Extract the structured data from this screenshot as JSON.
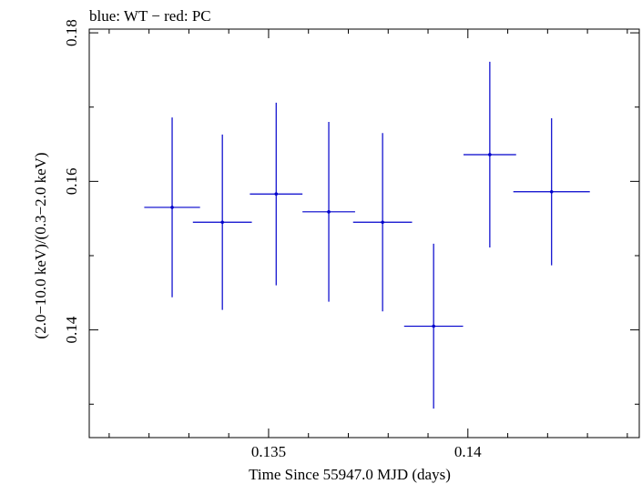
{
  "chart_data": {
    "type": "scatter",
    "title": "blue: WT − red: PC",
    "xlabel": "Time Since 55947.0 MJD (days)",
    "ylabel": "(2.0−10.0 keV)/(0.3−2.0 keV)",
    "xlim": [
      0.1305,
      0.1443
    ],
    "ylim": [
      0.1255,
      0.1805
    ],
    "x_ticks": [
      {
        "value": 0.135,
        "label": "0.135"
      },
      {
        "value": 0.14,
        "label": "0.14"
      }
    ],
    "y_ticks": [
      {
        "value": 0.14,
        "label": "0.14"
      },
      {
        "value": 0.16,
        "label": "0.16"
      },
      {
        "value": 0.18,
        "label": "0.18"
      }
    ],
    "grid": false,
    "series": [
      {
        "color": "#0000cc",
        "points": [
          {
            "x": 0.13258,
            "xerr": 0.0007,
            "y": 0.1565,
            "yerr": 0.0121
          },
          {
            "x": 0.13384,
            "xerr": 0.00074,
            "y": 0.1545,
            "yerr": 0.0118
          },
          {
            "x": 0.13519,
            "xerr": 0.00066,
            "y": 0.1583,
            "yerr": 0.0123
          },
          {
            "x": 0.13651,
            "xerr": 0.00066,
            "y": 0.1559,
            "yerr": 0.0121
          },
          {
            "x": 0.13786,
            "xerr": 0.00074,
            "y": 0.1545,
            "yerr": 0.012
          },
          {
            "x": 0.13914,
            "xerr": 0.00074,
            "y": 0.1405,
            "yerr": 0.0111
          },
          {
            "x": 0.14055,
            "xerr": 0.00066,
            "y": 0.1636,
            "yerr": 0.0125
          },
          {
            "x": 0.1421,
            "xerr": 0.00096,
            "y": 0.1586,
            "yerr": 0.0099
          }
        ]
      }
    ]
  }
}
